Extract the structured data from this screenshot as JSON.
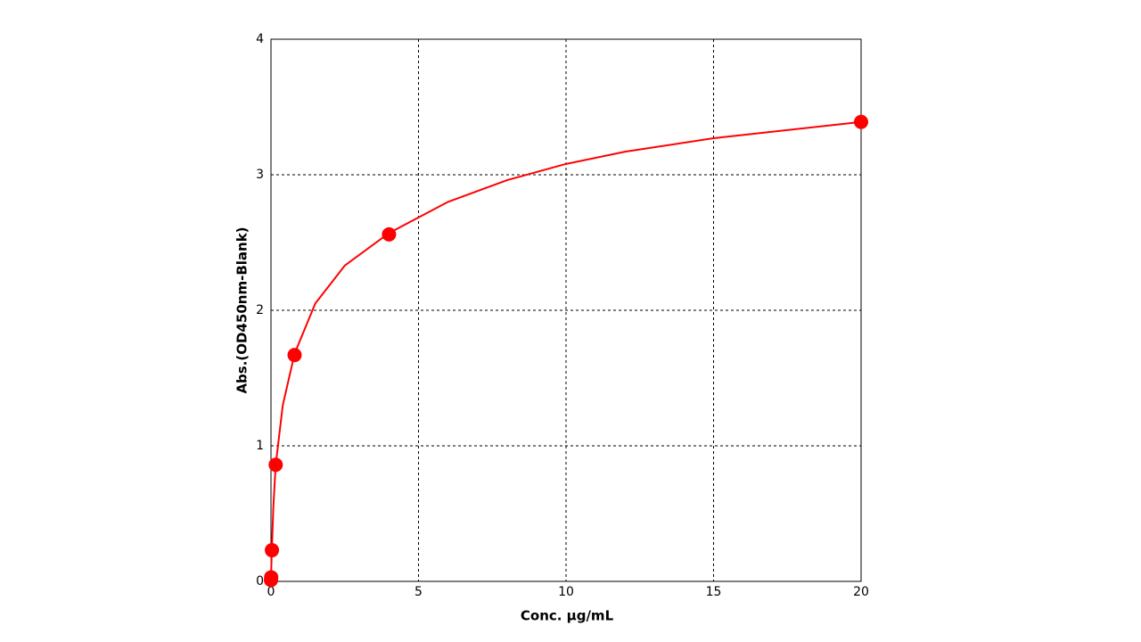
{
  "chart_data": {
    "type": "scatter",
    "x_label": "Conc. µg/mL",
    "y_label": "Abs.(OD450nm-Blank)",
    "xlim": [
      0,
      20
    ],
    "ylim": [
      0,
      4
    ],
    "xticks": [
      0,
      5,
      10,
      15,
      20
    ],
    "yticks": [
      0,
      1,
      2,
      3,
      4
    ],
    "grid": true,
    "series": [
      {
        "type": "scatter",
        "color": "#ff0000",
        "x": [
          0,
          0.0064,
          0.032,
          0.16,
          0.8,
          4,
          20
        ],
        "values": [
          0.01,
          0.03,
          0.23,
          0.86,
          1.67,
          2.56,
          3.39
        ]
      },
      {
        "type": "line",
        "color": "#ff0000",
        "x": [
          0,
          0.01,
          0.032,
          0.08,
          0.16,
          0.4,
          0.8,
          1.5,
          2.5,
          4,
          6,
          8,
          10,
          12,
          15,
          20
        ],
        "values": [
          0,
          0.1,
          0.25,
          0.55,
          0.86,
          1.3,
          1.68,
          2.05,
          2.33,
          2.57,
          2.8,
          2.96,
          3.08,
          3.17,
          3.27,
          3.39
        ]
      }
    ]
  }
}
